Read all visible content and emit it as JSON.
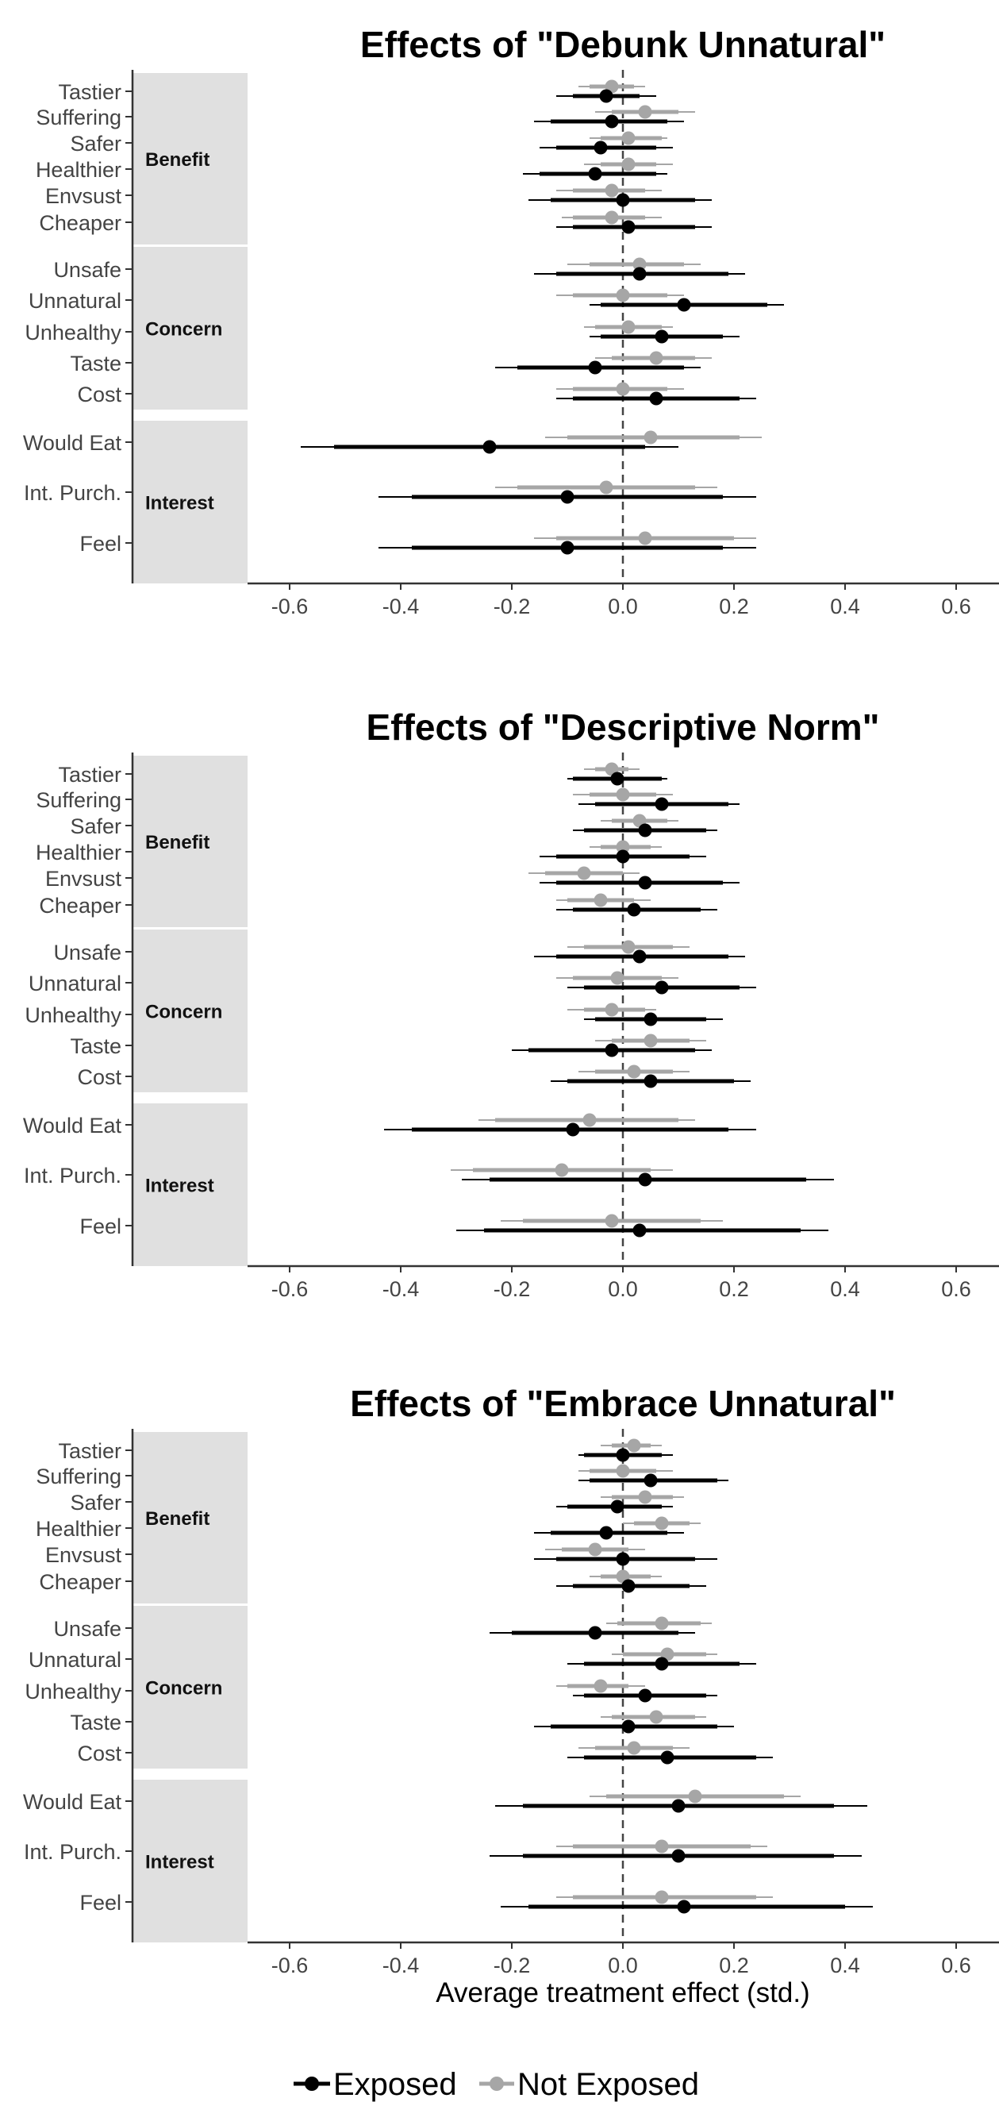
{
  "chart_data": {
    "type": "forest",
    "xlabel": "Average treatment effect (std.)",
    "xlim": [
      -0.68,
      0.68
    ],
    "x_ticks": [
      "-0.6",
      "-0.4",
      "-0.2",
      "0.0",
      "0.2",
      "0.4",
      "0.6"
    ],
    "reference_line": 0.0,
    "legend": {
      "position": "bottom",
      "entries": [
        {
          "label": "Exposed",
          "color": "#000000"
        },
        {
          "label": "Not Exposed",
          "color": "#a6a6a6"
        }
      ]
    },
    "groups": [
      "Benefit",
      "Concern",
      "Interest"
    ],
    "panels": [
      {
        "title": "Effects of \"Debunk Unnatural\"",
        "groups": [
          {
            "name": "Benefit",
            "items": [
              {
                "label": "Tastier",
                "not_exposed": [
                  -0.02,
                  -0.06,
                  0.02,
                  -0.08,
                  0.04
                ],
                "exposed": [
                  -0.03,
                  -0.09,
                  0.03,
                  -0.12,
                  0.06
                ]
              },
              {
                "label": "Suffering",
                "not_exposed": [
                  0.04,
                  -0.02,
                  0.1,
                  -0.05,
                  0.13
                ],
                "exposed": [
                  -0.02,
                  -0.13,
                  0.08,
                  -0.16,
                  0.11
                ]
              },
              {
                "label": "Safer",
                "not_exposed": [
                  0.01,
                  -0.04,
                  0.07,
                  -0.06,
                  0.08
                ],
                "exposed": [
                  -0.04,
                  -0.12,
                  0.06,
                  -0.15,
                  0.09
                ]
              },
              {
                "label": "Healthier",
                "not_exposed": [
                  0.01,
                  -0.04,
                  0.06,
                  -0.07,
                  0.09
                ],
                "exposed": [
                  -0.05,
                  -0.15,
                  0.06,
                  -0.18,
                  0.08
                ]
              },
              {
                "label": "Envsust",
                "not_exposed": [
                  -0.02,
                  -0.09,
                  0.04,
                  -0.12,
                  0.07
                ],
                "exposed": [
                  0.0,
                  -0.13,
                  0.13,
                  -0.17,
                  0.16
                ]
              },
              {
                "label": "Cheaper",
                "not_exposed": [
                  -0.02,
                  -0.09,
                  0.04,
                  -0.11,
                  0.07
                ],
                "exposed": [
                  0.01,
                  -0.09,
                  0.13,
                  -0.12,
                  0.16
                ]
              }
            ]
          },
          {
            "name": "Concern",
            "items": [
              {
                "label": "Unsafe",
                "not_exposed": [
                  0.03,
                  -0.06,
                  0.11,
                  -0.1,
                  0.14
                ],
                "exposed": [
                  0.03,
                  -0.12,
                  0.19,
                  -0.16,
                  0.22
                ]
              },
              {
                "label": "Unnatural",
                "not_exposed": [
                  0.0,
                  -0.09,
                  0.08,
                  -0.12,
                  0.11
                ],
                "exposed": [
                  0.11,
                  -0.04,
                  0.26,
                  -0.06,
                  0.29
                ]
              },
              {
                "label": "Unhealthy",
                "not_exposed": [
                  0.01,
                  -0.05,
                  0.07,
                  -0.07,
                  0.09
                ],
                "exposed": [
                  0.07,
                  -0.04,
                  0.18,
                  -0.06,
                  0.21
                ]
              },
              {
                "label": "Taste",
                "not_exposed": [
                  0.06,
                  -0.02,
                  0.13,
                  -0.05,
                  0.16
                ],
                "exposed": [
                  -0.05,
                  -0.19,
                  0.11,
                  -0.23,
                  0.14
                ]
              },
              {
                "label": "Cost",
                "not_exposed": [
                  0.0,
                  -0.09,
                  0.08,
                  -0.12,
                  0.11
                ],
                "exposed": [
                  0.06,
                  -0.09,
                  0.21,
                  -0.12,
                  0.24
                ]
              }
            ]
          },
          {
            "name": "Interest",
            "items": [
              {
                "label": "Would Eat",
                "not_exposed": [
                  0.05,
                  -0.1,
                  0.21,
                  -0.14,
                  0.25
                ],
                "exposed": [
                  -0.24,
                  -0.52,
                  0.04,
                  -0.58,
                  0.1
                ]
              },
              {
                "label": "Int. Purch.",
                "not_exposed": [
                  -0.03,
                  -0.19,
                  0.13,
                  -0.23,
                  0.17
                ],
                "exposed": [
                  -0.1,
                  -0.38,
                  0.18,
                  -0.44,
                  0.24
                ]
              },
              {
                "label": "Feel",
                "not_exposed": [
                  0.04,
                  -0.12,
                  0.2,
                  -0.16,
                  0.24
                ],
                "exposed": [
                  -0.1,
                  -0.38,
                  0.18,
                  -0.44,
                  0.24
                ]
              }
            ]
          }
        ]
      },
      {
        "title": "Effects of \"Descriptive Norm\"",
        "groups": [
          {
            "name": "Benefit",
            "items": [
              {
                "label": "Tastier",
                "not_exposed": [
                  -0.02,
                  -0.05,
                  0.01,
                  -0.07,
                  0.03
                ],
                "exposed": [
                  -0.01,
                  -0.09,
                  0.07,
                  -0.1,
                  0.08
                ]
              },
              {
                "label": "Suffering",
                "not_exposed": [
                  0.0,
                  -0.06,
                  0.06,
                  -0.09,
                  0.09
                ],
                "exposed": [
                  0.07,
                  -0.05,
                  0.19,
                  -0.08,
                  0.21
                ]
              },
              {
                "label": "Safer",
                "not_exposed": [
                  0.03,
                  -0.02,
                  0.08,
                  -0.04,
                  0.1
                ],
                "exposed": [
                  0.04,
                  -0.07,
                  0.15,
                  -0.09,
                  0.17
                ]
              },
              {
                "label": "Healthier",
                "not_exposed": [
                  0.0,
                  -0.04,
                  0.05,
                  -0.06,
                  0.07
                ],
                "exposed": [
                  0.0,
                  -0.12,
                  0.12,
                  -0.15,
                  0.15
                ]
              },
              {
                "label": "Envsust",
                "not_exposed": [
                  -0.07,
                  -0.14,
                  0.0,
                  -0.17,
                  0.03
                ],
                "exposed": [
                  0.04,
                  -0.12,
                  0.18,
                  -0.15,
                  0.21
                ]
              },
              {
                "label": "Cheaper",
                "not_exposed": [
                  -0.04,
                  -0.1,
                  0.02,
                  -0.12,
                  0.05
                ],
                "exposed": [
                  0.02,
                  -0.09,
                  0.14,
                  -0.12,
                  0.17
                ]
              }
            ]
          },
          {
            "name": "Concern",
            "items": [
              {
                "label": "Unsafe",
                "not_exposed": [
                  0.01,
                  -0.07,
                  0.09,
                  -0.1,
                  0.12
                ],
                "exposed": [
                  0.03,
                  -0.12,
                  0.19,
                  -0.16,
                  0.22
                ]
              },
              {
                "label": "Unnatural",
                "not_exposed": [
                  -0.01,
                  -0.09,
                  0.07,
                  -0.12,
                  0.1
                ],
                "exposed": [
                  0.07,
                  -0.07,
                  0.21,
                  -0.1,
                  0.24
                ]
              },
              {
                "label": "Unhealthy",
                "not_exposed": [
                  -0.02,
                  -0.07,
                  0.04,
                  -0.1,
                  0.06
                ],
                "exposed": [
                  0.05,
                  -0.05,
                  0.15,
                  -0.07,
                  0.18
                ]
              },
              {
                "label": "Taste",
                "not_exposed": [
                  0.05,
                  -0.02,
                  0.12,
                  -0.05,
                  0.15
                ],
                "exposed": [
                  -0.02,
                  -0.17,
                  0.13,
                  -0.2,
                  0.16
                ]
              },
              {
                "label": "Cost",
                "not_exposed": [
                  0.02,
                  -0.05,
                  0.09,
                  -0.08,
                  0.12
                ],
                "exposed": [
                  0.05,
                  -0.1,
                  0.2,
                  -0.13,
                  0.23
                ]
              }
            ]
          },
          {
            "name": "Interest",
            "items": [
              {
                "label": "Would Eat",
                "not_exposed": [
                  -0.06,
                  -0.23,
                  0.1,
                  -0.26,
                  0.13
                ],
                "exposed": [
                  -0.09,
                  -0.38,
                  0.19,
                  -0.43,
                  0.24
                ]
              },
              {
                "label": "Int. Purch.",
                "not_exposed": [
                  -0.11,
                  -0.27,
                  0.05,
                  -0.31,
                  0.09
                ],
                "exposed": [
                  0.04,
                  -0.24,
                  0.33,
                  -0.29,
                  0.38
                ]
              },
              {
                "label": "Feel",
                "not_exposed": [
                  -0.02,
                  -0.18,
                  0.14,
                  -0.22,
                  0.18
                ],
                "exposed": [
                  0.03,
                  -0.25,
                  0.32,
                  -0.3,
                  0.37
                ]
              }
            ]
          }
        ]
      },
      {
        "title": "Effects of \"Embrace Unnatural\"",
        "groups": [
          {
            "name": "Benefit",
            "items": [
              {
                "label": "Tastier",
                "not_exposed": [
                  0.02,
                  -0.02,
                  0.05,
                  -0.04,
                  0.07
                ],
                "exposed": [
                  0.0,
                  -0.07,
                  0.07,
                  -0.08,
                  0.09
                ]
              },
              {
                "label": "Suffering",
                "not_exposed": [
                  0.0,
                  -0.06,
                  0.06,
                  -0.08,
                  0.09
                ],
                "exposed": [
                  0.05,
                  -0.06,
                  0.17,
                  -0.08,
                  0.19
                ]
              },
              {
                "label": "Safer",
                "not_exposed": [
                  0.04,
                  -0.02,
                  0.09,
                  -0.04,
                  0.11
                ],
                "exposed": [
                  -0.01,
                  -0.1,
                  0.07,
                  -0.12,
                  0.09
                ]
              },
              {
                "label": "Healthier",
                "not_exposed": [
                  0.07,
                  0.02,
                  0.12,
                  0.0,
                  0.14
                ],
                "exposed": [
                  -0.03,
                  -0.13,
                  0.08,
                  -0.16,
                  0.11
                ]
              },
              {
                "label": "Envsust",
                "not_exposed": [
                  -0.05,
                  -0.11,
                  0.01,
                  -0.14,
                  0.04
                ],
                "exposed": [
                  0.0,
                  -0.12,
                  0.13,
                  -0.16,
                  0.17
                ]
              },
              {
                "label": "Cheaper",
                "not_exposed": [
                  0.0,
                  -0.04,
                  0.05,
                  -0.06,
                  0.07
                ],
                "exposed": [
                  0.01,
                  -0.09,
                  0.12,
                  -0.12,
                  0.15
                ]
              }
            ]
          },
          {
            "name": "Concern",
            "items": [
              {
                "label": "Unsafe",
                "not_exposed": [
                  0.07,
                  -0.01,
                  0.14,
                  -0.03,
                  0.16
                ],
                "exposed": [
                  -0.05,
                  -0.2,
                  0.1,
                  -0.24,
                  0.13
                ]
              },
              {
                "label": "Unnatural",
                "not_exposed": [
                  0.08,
                  0.0,
                  0.15,
                  -0.02,
                  0.17
                ],
                "exposed": [
                  0.07,
                  -0.07,
                  0.21,
                  -0.1,
                  0.24
                ]
              },
              {
                "label": "Unhealthy",
                "not_exposed": [
                  -0.04,
                  -0.1,
                  0.01,
                  -0.12,
                  0.04
                ],
                "exposed": [
                  0.04,
                  -0.07,
                  0.15,
                  -0.09,
                  0.17
                ]
              },
              {
                "label": "Taste",
                "not_exposed": [
                  0.06,
                  -0.02,
                  0.13,
                  -0.04,
                  0.15
                ],
                "exposed": [
                  0.01,
                  -0.13,
                  0.17,
                  -0.16,
                  0.2
                ]
              },
              {
                "label": "Cost",
                "not_exposed": [
                  0.02,
                  -0.05,
                  0.09,
                  -0.08,
                  0.12
                ],
                "exposed": [
                  0.08,
                  -0.07,
                  0.24,
                  -0.1,
                  0.27
                ]
              }
            ]
          },
          {
            "name": "Interest",
            "items": [
              {
                "label": "Would Eat",
                "not_exposed": [
                  0.13,
                  -0.03,
                  0.29,
                  -0.06,
                  0.32
                ],
                "exposed": [
                  0.1,
                  -0.18,
                  0.38,
                  -0.23,
                  0.44
                ]
              },
              {
                "label": "Int. Purch.",
                "not_exposed": [
                  0.07,
                  -0.09,
                  0.23,
                  -0.12,
                  0.26
                ],
                "exposed": [
                  0.1,
                  -0.18,
                  0.38,
                  -0.24,
                  0.43
                ]
              },
              {
                "label": "Feel",
                "not_exposed": [
                  0.07,
                  -0.09,
                  0.24,
                  -0.12,
                  0.27
                ],
                "exposed": [
                  0.11,
                  -0.17,
                  0.4,
                  -0.22,
                  0.45
                ]
              }
            ]
          }
        ]
      }
    ]
  }
}
